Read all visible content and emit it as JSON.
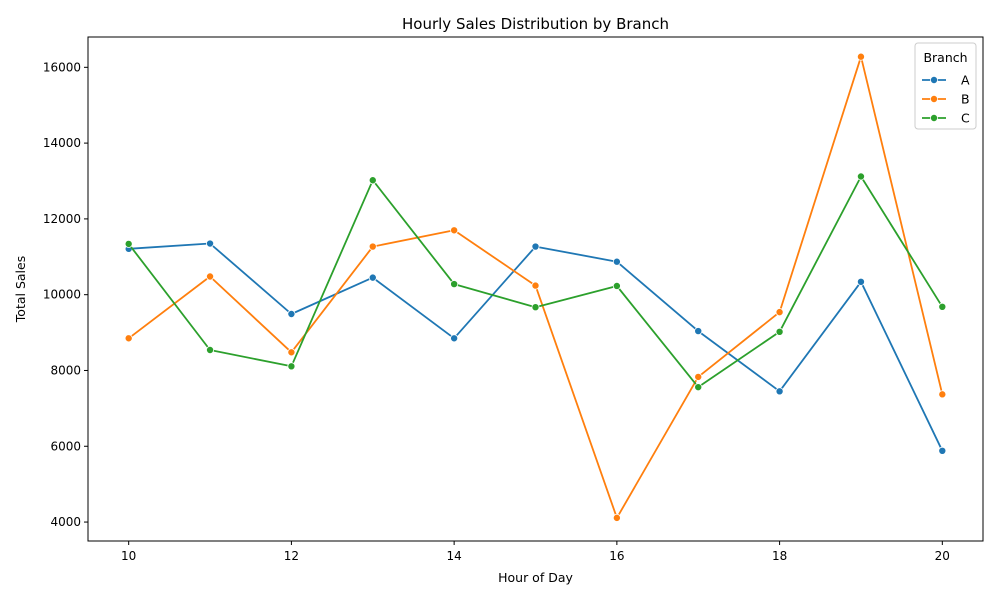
{
  "chart_data": {
    "type": "line",
    "title": "Hourly Sales Distribution by Branch",
    "xlabel": "Hour of Day",
    "ylabel": "Total Sales",
    "x": [
      10,
      11,
      12,
      13,
      14,
      15,
      16,
      17,
      18,
      19,
      20
    ],
    "xlim": [
      9.5,
      20.5
    ],
    "ylim": [
      3500,
      16800
    ],
    "xticks": [
      10,
      12,
      14,
      16,
      18,
      20
    ],
    "yticks": [
      4000,
      6000,
      8000,
      10000,
      12000,
      14000,
      16000
    ],
    "grid": false,
    "legend": {
      "title": "Branch",
      "placement": "top-right"
    },
    "series": [
      {
        "name": "A",
        "color": "#1f77b4",
        "values": [
          11210,
          11350,
          9490,
          10450,
          8850,
          11270,
          10870,
          9040,
          7450,
          10340,
          5880
        ]
      },
      {
        "name": "B",
        "color": "#ff7f0e",
        "values": [
          8850,
          10480,
          8480,
          11270,
          11700,
          10240,
          4110,
          7830,
          9540,
          16280,
          7370
        ]
      },
      {
        "name": "C",
        "color": "#2ca02c",
        "values": [
          11340,
          8540,
          8110,
          13020,
          10280,
          9670,
          10230,
          7560,
          9020,
          13120,
          9680
        ]
      }
    ]
  }
}
